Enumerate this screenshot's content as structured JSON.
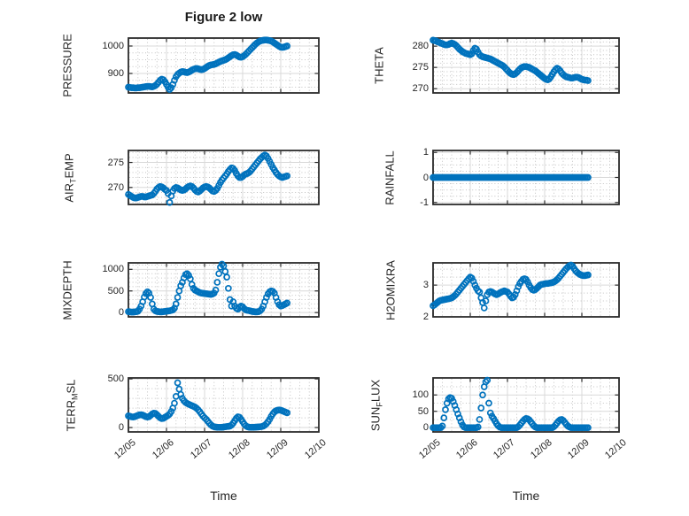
{
  "figure": {
    "title": "Figure 2 low",
    "xlabel": "Time"
  },
  "style": {
    "marker_color": "#0072BD",
    "axis_color": "#2b2b2b",
    "text_color": "#262626",
    "grid_color": "#d9d9d9",
    "minor_grid_color": "#c4c4c4",
    "background": "#ffffff"
  },
  "time_axis": {
    "tick_labels": [
      "12/05",
      "12/06",
      "12/07",
      "12/08",
      "12/09",
      "12/10"
    ],
    "tick_hours": [
      0,
      24,
      48,
      72,
      96,
      120
    ],
    "lim_hours": [
      0,
      120
    ],
    "minor_step_hours": 6,
    "x_start_hour": 0,
    "x_step_hours": 1
  },
  "chart_data": [
    {
      "type": "scatter",
      "name": "PRESSURE",
      "marker": "o",
      "ylabel_segments": [
        {
          "t": "PRESSURE"
        }
      ],
      "yticks": [
        900,
        1000
      ],
      "ytick_labels": [
        "900",
        "1000"
      ],
      "ylim": [
        829,
        1029
      ],
      "yminor_div": 4,
      "values": [
        850,
        849,
        848,
        848,
        847,
        847,
        848,
        848,
        849,
        850,
        851,
        852,
        853,
        853,
        852,
        851,
        853,
        856,
        861,
        868,
        875,
        879,
        877,
        870,
        860,
        850,
        842,
        848,
        860,
        875,
        888,
        896,
        901,
        905,
        907,
        906,
        904,
        903,
        905,
        908,
        912,
        915,
        917,
        918,
        917,
        915,
        914,
        915,
        918,
        922,
        926,
        929,
        931,
        932,
        933,
        935,
        938,
        941,
        944,
        946,
        948,
        950,
        953,
        957,
        961,
        965,
        968,
        969,
        967,
        963,
        960,
        959,
        961,
        965,
        970,
        976,
        982,
        988,
        994,
        1000,
        1006,
        1011,
        1015,
        1018,
        1020,
        1021,
        1022,
        1022,
        1021,
        1020,
        1018,
        1015,
        1011,
        1007,
        1003,
        999,
        996,
        995,
        996,
        998,
        1000
      ]
    },
    {
      "type": "scatter",
      "name": "THETA",
      "marker": "o",
      "ylabel_segments": [
        {
          "t": "THETA"
        }
      ],
      "yticks": [
        270,
        275,
        280
      ],
      "ytick_labels": [
        "270",
        "275",
        "280"
      ],
      "ylim": [
        269.0,
        281.9
      ],
      "yminor_div": 5,
      "values": [
        281.4,
        281.3,
        281.2,
        281.0,
        280.9,
        280.7,
        280.6,
        280.4,
        280.3,
        280.3,
        280.4,
        280.6,
        280.7,
        280.6,
        280.4,
        280.1,
        279.7,
        279.3,
        279.0,
        278.7,
        278.5,
        278.3,
        278.2,
        278.1,
        278.0,
        278.2,
        279.0,
        279.5,
        279.3,
        278.6,
        278.0,
        277.7,
        277.5,
        277.4,
        277.3,
        277.2,
        277.1,
        277.0,
        276.8,
        276.6,
        276.4,
        276.2,
        276.0,
        275.8,
        275.6,
        275.4,
        275.1,
        274.7,
        274.3,
        273.9,
        273.6,
        273.4,
        273.3,
        273.5,
        273.8,
        274.2,
        274.6,
        274.9,
        275.1,
        275.2,
        275.2,
        275.1,
        275.0,
        274.8,
        274.6,
        274.4,
        274.2,
        273.9,
        273.6,
        273.3,
        273.0,
        272.7,
        272.4,
        272.2,
        272.1,
        272.3,
        272.8,
        273.4,
        274.0,
        274.5,
        274.8,
        274.6,
        274.2,
        273.7,
        273.3,
        273.0,
        272.8,
        272.7,
        272.6,
        272.5,
        272.5,
        272.6,
        272.7,
        272.7,
        272.6,
        272.4,
        272.2,
        272.1,
        272.0,
        272.0,
        271.9
      ]
    },
    {
      "type": "scatter",
      "name": "AIR_TEMP",
      "marker": "o",
      "ylabel_segments": [
        {
          "t": "AIR"
        },
        {
          "t": "T",
          "sub": true
        },
        {
          "t": "EMP"
        }
      ],
      "yticks": [
        270,
        275
      ],
      "ytick_labels": [
        "270",
        "275"
      ],
      "ylim": [
        266.6,
        277.4
      ],
      "yminor_div": 5,
      "values": [
        268.6,
        268.4,
        268.2,
        268.0,
        267.9,
        267.9,
        268.0,
        268.1,
        268.2,
        268.2,
        268.1,
        268.1,
        268.2,
        268.3,
        268.4,
        268.5,
        268.8,
        269.2,
        269.7,
        270.0,
        270.2,
        270.1,
        269.9,
        269.6,
        269.4,
        268.8,
        267.0,
        268.3,
        269.3,
        269.8,
        270.0,
        269.9,
        269.7,
        269.5,
        269.4,
        269.5,
        269.7,
        270.0,
        270.2,
        270.3,
        270.2,
        269.9,
        269.5,
        269.2,
        269.1,
        269.3,
        269.6,
        269.9,
        270.1,
        270.2,
        270.1,
        269.9,
        269.6,
        269.3,
        269.2,
        269.4,
        269.8,
        270.4,
        271.0,
        271.5,
        271.9,
        272.3,
        272.7,
        273.2,
        273.6,
        273.9,
        273.8,
        273.4,
        272.8,
        272.3,
        272.0,
        272.0,
        272.2,
        272.5,
        272.7,
        272.8,
        273.0,
        273.3,
        273.7,
        274.1,
        274.5,
        274.9,
        275.3,
        275.7,
        276.0,
        276.3,
        276.5,
        276.3,
        275.8,
        275.2,
        274.6,
        274.0,
        273.5,
        273.0,
        272.6,
        272.3,
        272.1,
        272.0,
        272.1,
        272.2,
        272.3
      ]
    },
    {
      "type": "scatter",
      "name": "RAINFALL",
      "marker": "o",
      "ylabel_segments": [
        {
          "t": "RAINFALL"
        }
      ],
      "yticks": [
        -1,
        0,
        1
      ],
      "ytick_labels": [
        "-1",
        "0",
        "1"
      ],
      "ylim": [
        -1.08,
        1.08
      ],
      "yminor_div": 4,
      "values": [
        0,
        0,
        0,
        0,
        0,
        0,
        0,
        0,
        0,
        0,
        0,
        0,
        0,
        0,
        0,
        0,
        0,
        0,
        0,
        0,
        0,
        0,
        0,
        0,
        0,
        0,
        0,
        0,
        0,
        0,
        0,
        0,
        0,
        0,
        0,
        0,
        0,
        0,
        0,
        0,
        0,
        0,
        0,
        0,
        0,
        0,
        0,
        0,
        0,
        0,
        0,
        0,
        0,
        0,
        0,
        0,
        0,
        0,
        0,
        0,
        0,
        0,
        0,
        0,
        0,
        0,
        0,
        0,
        0,
        0,
        0,
        0,
        0,
        0,
        0,
        0,
        0,
        0,
        0,
        0,
        0,
        0,
        0,
        0,
        0,
        0,
        0,
        0,
        0,
        0,
        0,
        0,
        0,
        0,
        0,
        0,
        0,
        0,
        0,
        0,
        0
      ]
    },
    {
      "type": "scatter",
      "name": "MIXDEPTH",
      "marker": "o",
      "ylabel_segments": [
        {
          "t": "MIXDEPTH"
        }
      ],
      "yticks": [
        0,
        500,
        1000
      ],
      "ytick_labels": [
        "0",
        "500",
        "1000"
      ],
      "ylim": [
        -100,
        1150
      ],
      "yminor_div": 5,
      "values": [
        20,
        15,
        10,
        10,
        15,
        20,
        30,
        80,
        150,
        250,
        360,
        440,
        480,
        450,
        350,
        200,
        80,
        40,
        25,
        20,
        15,
        15,
        20,
        25,
        30,
        35,
        40,
        50,
        60,
        100,
        200,
        350,
        500,
        620,
        700,
        800,
        880,
        900,
        860,
        780,
        650,
        560,
        520,
        500,
        480,
        460,
        450,
        445,
        440,
        435,
        430,
        425,
        420,
        430,
        450,
        520,
        700,
        900,
        1050,
        1120,
        1080,
        950,
        820,
        560,
        300,
        150,
        250,
        150,
        100,
        80,
        120,
        150,
        130,
        90,
        60,
        50,
        45,
        35,
        25,
        20,
        15,
        15,
        20,
        40,
        80,
        150,
        250,
        350,
        430,
        480,
        500,
        490,
        450,
        350,
        250,
        180,
        150,
        160,
        180,
        200,
        220
      ]
    },
    {
      "type": "scatter",
      "name": "H2OMIXRA",
      "marker": "o",
      "ylabel_segments": [
        {
          "t": "H2OMIXRA"
        }
      ],
      "yticks": [
        2,
        3
      ],
      "ytick_labels": [
        "2",
        "3"
      ],
      "ylim": [
        2.0,
        3.7
      ],
      "yminor_div": 4,
      "values": [
        2.35,
        2.38,
        2.42,
        2.46,
        2.5,
        2.52,
        2.53,
        2.54,
        2.55,
        2.56,
        2.57,
        2.58,
        2.6,
        2.63,
        2.67,
        2.72,
        2.78,
        2.84,
        2.9,
        2.96,
        3.02,
        3.08,
        3.14,
        3.2,
        3.25,
        3.22,
        3.12,
        3.0,
        2.9,
        2.82,
        2.78,
        2.6,
        2.45,
        2.28,
        2.5,
        2.7,
        2.78,
        2.8,
        2.78,
        2.75,
        2.72,
        2.7,
        2.72,
        2.75,
        2.78,
        2.8,
        2.82,
        2.8,
        2.78,
        2.72,
        2.65,
        2.6,
        2.62,
        2.7,
        2.82,
        2.95,
        3.05,
        3.12,
        3.18,
        3.2,
        3.18,
        3.1,
        3.0,
        2.92,
        2.86,
        2.84,
        2.86,
        2.9,
        2.95,
        3.0,
        3.02,
        3.03,
        3.04,
        3.05,
        3.05,
        3.06,
        3.07,
        3.08,
        3.1,
        3.13,
        3.17,
        3.22,
        3.28,
        3.34,
        3.4,
        3.46,
        3.52,
        3.57,
        3.61,
        3.63,
        3.6,
        3.52,
        3.45,
        3.4,
        3.36,
        3.33,
        3.31,
        3.3,
        3.3,
        3.31,
        3.32
      ]
    },
    {
      "type": "scatter",
      "name": "TERR_MSL",
      "marker": "o",
      "ylabel_segments": [
        {
          "t": "TERR"
        },
        {
          "t": "M",
          "sub": true
        },
        {
          "t": "SL"
        }
      ],
      "yticks": [
        0,
        500
      ],
      "ytick_labels": [
        "0",
        "500"
      ],
      "ylim": [
        -45,
        510
      ],
      "yminor_div": 5,
      "values": [
        120,
        115,
        110,
        108,
        112,
        118,
        125,
        130,
        132,
        128,
        120,
        112,
        108,
        112,
        125,
        140,
        148,
        145,
        132,
        115,
        100,
        92,
        95,
        105,
        115,
        125,
        140,
        165,
        200,
        250,
        320,
        460,
        395,
        340,
        300,
        275,
        258,
        248,
        240,
        232,
        225,
        218,
        210,
        198,
        182,
        162,
        140,
        118,
        100,
        85,
        65,
        45,
        28,
        15,
        8,
        5,
        3,
        2,
        2,
        3,
        5,
        8,
        10,
        12,
        15,
        25,
        45,
        70,
        95,
        110,
        105,
        85,
        60,
        35,
        18,
        8,
        4,
        2,
        2,
        3,
        4,
        5,
        6,
        8,
        10,
        15,
        25,
        40,
        60,
        85,
        115,
        140,
        160,
        172,
        178,
        180,
        178,
        172,
        165,
        158,
        152
      ]
    },
    {
      "type": "scatter",
      "name": "SUN_FLUX",
      "marker": "o",
      "ylabel_segments": [
        {
          "t": "SUN"
        },
        {
          "t": "F",
          "sub": true
        },
        {
          "t": "LUX"
        }
      ],
      "yticks": [
        0,
        50,
        100
      ],
      "ytick_labels": [
        "0",
        "50",
        "100"
      ],
      "ylim": [
        -13,
        152
      ],
      "yminor_div": 2,
      "values": [
        0,
        0,
        0,
        0,
        0,
        0,
        5,
        30,
        55,
        75,
        88,
        92,
        90,
        80,
        68,
        55,
        42,
        30,
        18,
        8,
        2,
        0,
        0,
        0,
        0,
        0,
        0,
        0,
        0,
        2,
        25,
        60,
        100,
        125,
        140,
        145,
        75,
        45,
        35,
        28,
        20,
        12,
        6,
        2,
        0,
        0,
        0,
        0,
        0,
        0,
        0,
        0,
        0,
        0,
        0,
        3,
        8,
        14,
        20,
        25,
        28,
        27,
        24,
        18,
        12,
        6,
        2,
        0,
        0,
        0,
        0,
        0,
        0,
        0,
        0,
        0,
        0,
        0,
        3,
        8,
        14,
        20,
        24,
        25,
        22,
        16,
        10,
        5,
        2,
        0,
        0,
        0,
        0,
        0,
        0,
        0,
        0,
        0,
        0,
        0,
        0
      ]
    }
  ]
}
